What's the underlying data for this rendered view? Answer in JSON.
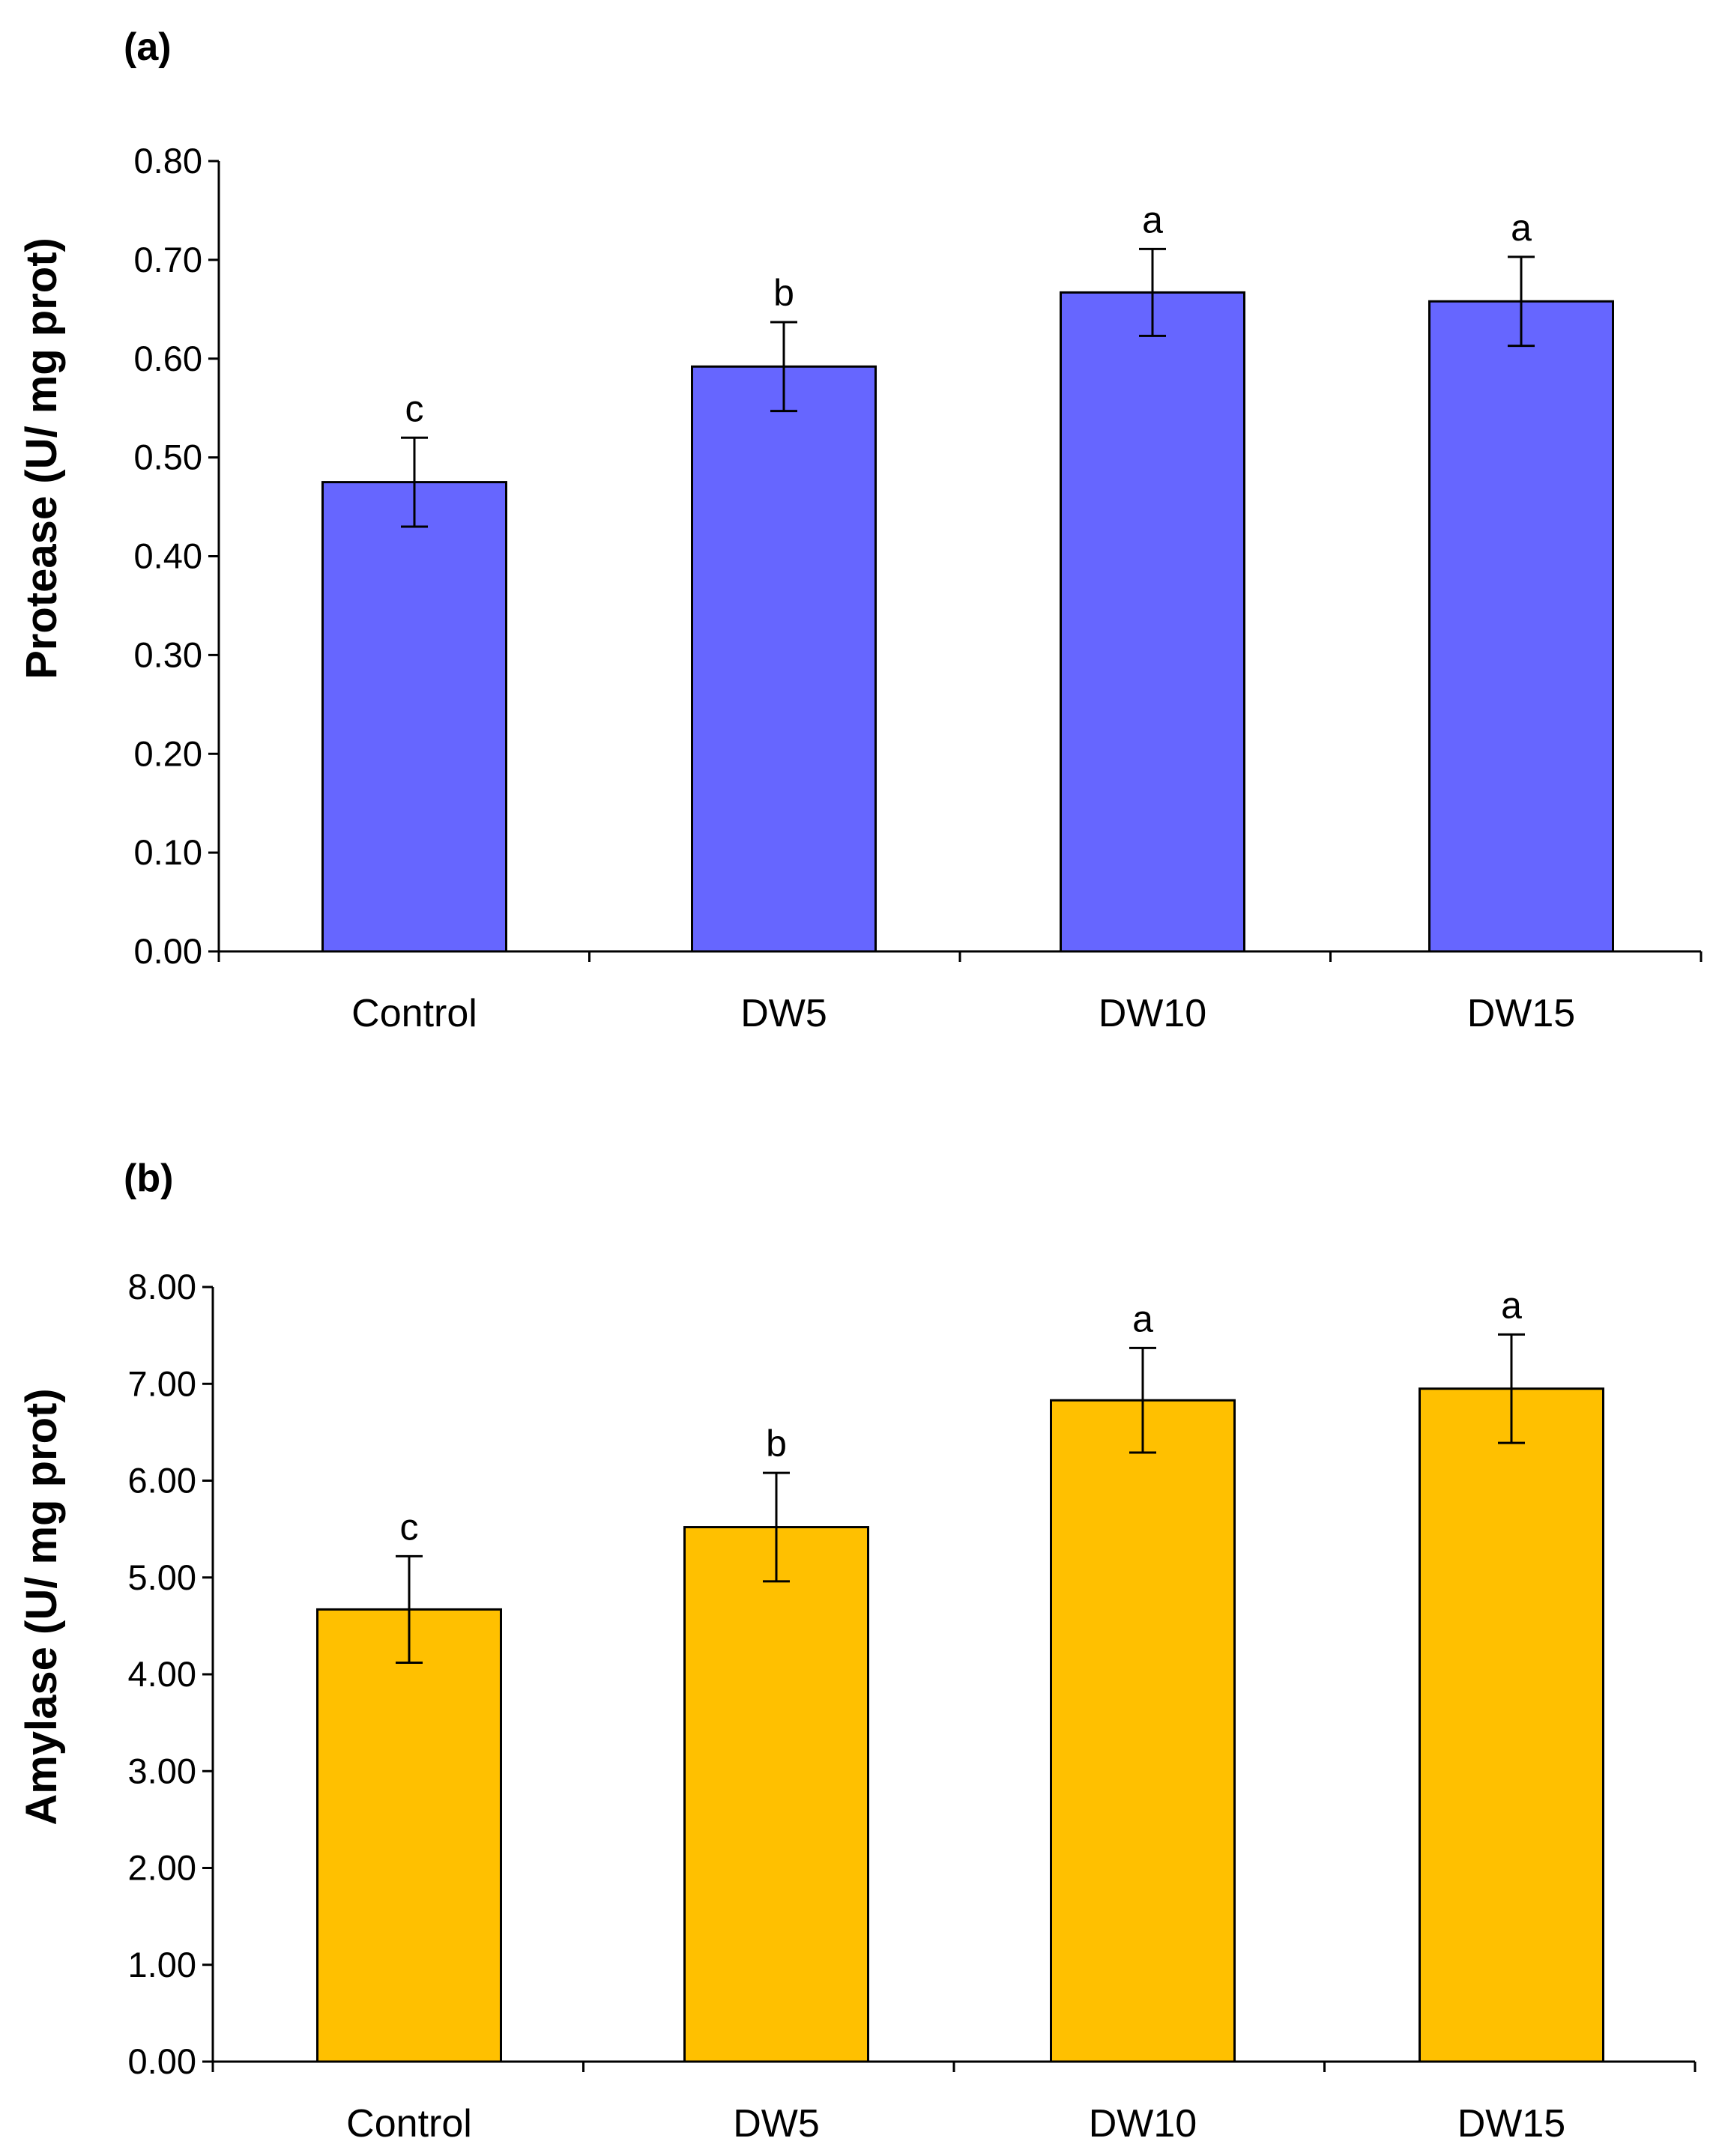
{
  "chart_data": [
    {
      "type": "bar",
      "panel_label": "(a)",
      "title": "",
      "xlabel": "",
      "ylabel": "Protease (U/ mg prot)",
      "ylim": [
        0,
        0.8
      ],
      "yticks": [
        "0.00",
        "0.10",
        "0.20",
        "0.30",
        "0.40",
        "0.50",
        "0.60",
        "0.70",
        "0.80"
      ],
      "ytick_values": [
        0,
        0.1,
        0.2,
        0.3,
        0.4,
        0.5,
        0.6,
        0.7,
        0.8
      ],
      "categories": [
        "Control",
        "DW5",
        "DW10",
        "DW15"
      ],
      "values": [
        0.475,
        0.592,
        0.667,
        0.658
      ],
      "errors": [
        0.045,
        0.045,
        0.044,
        0.045
      ],
      "significance": [
        "c",
        "b",
        "a",
        "a"
      ],
      "bar_color": "#6666FF"
    },
    {
      "type": "bar",
      "panel_label": "(b)",
      "title": "",
      "xlabel": "",
      "ylabel": "Amylase (U/ mg prot)",
      "ylim": [
        0,
        8
      ],
      "yticks": [
        "0.00",
        "1.00",
        "2.00",
        "3.00",
        "4.00",
        "5.00",
        "6.00",
        "7.00",
        "8.00"
      ],
      "ytick_values": [
        0,
        1,
        2,
        3,
        4,
        5,
        6,
        7,
        8
      ],
      "categories": [
        "Control",
        "DW5",
        "DW10",
        "DW15"
      ],
      "values": [
        4.67,
        5.52,
        6.83,
        6.95
      ],
      "errors": [
        0.55,
        0.56,
        0.54,
        0.56
      ],
      "significance": [
        "c",
        "b",
        "a",
        "a"
      ],
      "bar_color": "#FFC000"
    }
  ]
}
